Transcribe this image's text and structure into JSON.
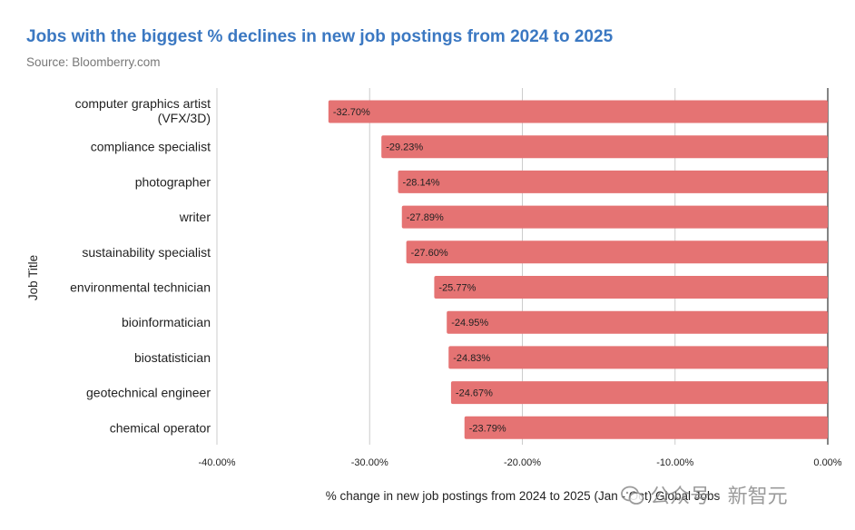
{
  "header": {
    "title": "Jobs with the biggest % declines in new job postings from 2024 to 2025",
    "source": "Source: Bloomberry.com"
  },
  "watermark": {
    "text": "公众号 · 新智元"
  },
  "colors": {
    "title": "#3b78c2",
    "bar": "#e57373",
    "grid": "#cccccc",
    "text": "#222222"
  },
  "chart_data": {
    "type": "bar",
    "orientation": "horizontal",
    "title": "Jobs with the biggest % declines in new job postings from 2024 to 2025",
    "subtitle": "Source: Bloomberry.com",
    "xlabel": "% change in new job postings from 2024 to 2025 (Jan - Oct) Global Jobs",
    "ylabel": "Job Title",
    "xlim": [
      -40,
      0
    ],
    "xticks": [
      -40,
      -30,
      -20,
      -10,
      0
    ],
    "xtick_labels": [
      "-40.00%",
      "-30.00%",
      "-20.00%",
      "-10.00%",
      "0.00%"
    ],
    "grid": true,
    "legend": "none",
    "categories": [
      [
        "computer graphics artist",
        "(VFX/3D)"
      ],
      [
        "compliance specialist"
      ],
      [
        "photographer"
      ],
      [
        "writer"
      ],
      [
        "sustainability specialist"
      ],
      [
        "environmental technician"
      ],
      [
        "bioinformatician"
      ],
      [
        "biostatistician"
      ],
      [
        "geotechnical engineer"
      ],
      [
        "chemical operator"
      ]
    ],
    "values": [
      -32.7,
      -29.23,
      -28.14,
      -27.89,
      -27.6,
      -25.77,
      -24.95,
      -24.83,
      -24.67,
      -23.79
    ],
    "value_labels": [
      "-32.70%",
      "-29.23%",
      "-28.14%",
      "-27.89%",
      "-27.60%",
      "-25.77%",
      "-24.95%",
      "-24.83%",
      "-24.67%",
      "-23.79%"
    ]
  }
}
